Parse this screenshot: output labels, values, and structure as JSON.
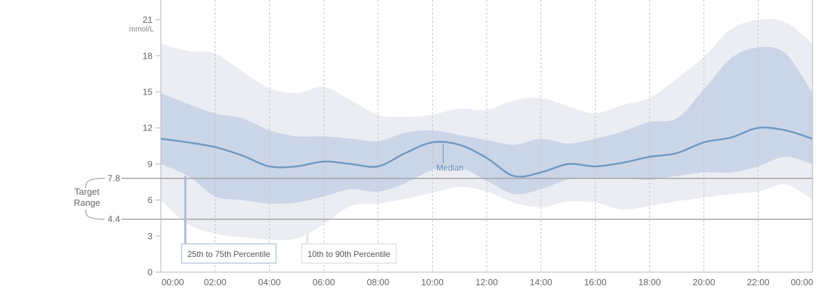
{
  "chart_data": {
    "type": "area",
    "unit": "mmol/L",
    "ylim": [
      0,
      22
    ],
    "y_ticks": [
      0,
      3,
      6,
      9,
      12,
      15,
      18,
      21
    ],
    "x_ticks": [
      "00:00",
      "02:00",
      "04:00",
      "06:00",
      "08:00",
      "10:00",
      "12:00",
      "14:00",
      "16:00",
      "18:00",
      "20:00",
      "22:00",
      "00:00"
    ],
    "xlim_hours": [
      0,
      24
    ],
    "grid": "vertical dashed every 2 hours",
    "target_range": {
      "label_line1": "Target",
      "label_line2": "Range",
      "low": 4.4,
      "high": 7.8,
      "low_label": "4.4",
      "high_label": "7.8"
    },
    "hours": [
      0,
      1,
      2,
      3,
      4,
      5,
      6,
      7,
      8,
      9,
      10,
      11,
      12,
      13,
      14,
      15,
      16,
      17,
      18,
      19,
      20,
      21,
      22,
      23,
      24
    ],
    "series": [
      {
        "name": "Median",
        "values": [
          11.1,
          10.8,
          10.4,
          9.7,
          8.8,
          8.8,
          9.2,
          9.0,
          8.8,
          9.9,
          10.8,
          10.6,
          9.5,
          8.0,
          8.3,
          9.0,
          8.8,
          9.1,
          9.6,
          9.9,
          10.8,
          11.2,
          12.0,
          11.8,
          11.1
        ]
      },
      {
        "name": "25th Percentile",
        "values": [
          9.0,
          8.0,
          6.3,
          6.0,
          5.7,
          5.8,
          6.3,
          6.9,
          6.7,
          7.4,
          8.5,
          8.7,
          7.6,
          6.5,
          6.9,
          7.7,
          7.8,
          7.8,
          7.7,
          8.0,
          8.3,
          8.3,
          8.8,
          9.6,
          9.0
        ]
      },
      {
        "name": "75th Percentile",
        "values": [
          14.9,
          14.0,
          13.2,
          12.8,
          11.8,
          11.3,
          11.3,
          11.1,
          10.9,
          11.6,
          11.8,
          11.4,
          11.0,
          10.6,
          11.1,
          10.7,
          11.1,
          11.7,
          12.5,
          12.8,
          15.2,
          17.8,
          18.7,
          18.2,
          14.9
        ]
      },
      {
        "name": "10th Percentile",
        "values": [
          6.0,
          4.0,
          3.2,
          2.9,
          2.7,
          2.8,
          4.0,
          5.5,
          5.7,
          6.1,
          6.6,
          7.1,
          6.7,
          5.8,
          5.4,
          5.9,
          5.8,
          5.2,
          5.5,
          5.9,
          6.2,
          6.5,
          6.7,
          7.3,
          6.0
        ]
      },
      {
        "name": "90th Percentile",
        "values": [
          19.0,
          18.4,
          18.2,
          16.7,
          15.3,
          14.9,
          15.4,
          14.3,
          13.1,
          12.9,
          13.1,
          13.6,
          13.5,
          14.3,
          14.5,
          13.8,
          13.2,
          13.9,
          14.5,
          16.1,
          17.9,
          20.2,
          21.0,
          20.8,
          19.0
        ]
      }
    ],
    "legend": {
      "inner": "25th to 75th Percentile",
      "outer": "10th to 90th Percentile",
      "median": "Median"
    }
  },
  "colors": {
    "outer_band": "#ebedf3",
    "inner_band": "#cbd5e8",
    "median_line": "#6f99c2",
    "target_line": "#a6a6a6",
    "grid_line": "#c2c2c2",
    "axis_line": "#b3b3b3",
    "inner_legend_border": "#a9bcda",
    "outer_legend_border": "#d6dae3"
  }
}
